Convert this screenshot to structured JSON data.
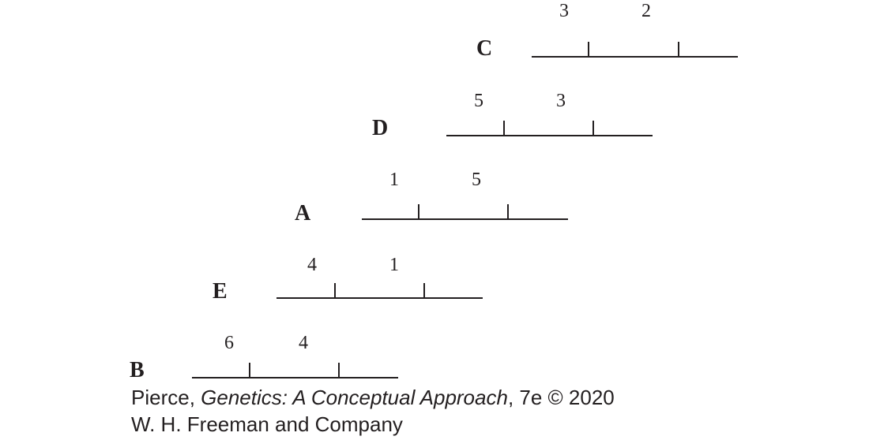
{
  "maps": [
    {
      "strain": "C",
      "gene_left": "3",
      "gene_right": "2"
    },
    {
      "strain": "D",
      "gene_left": "5",
      "gene_right": "3"
    },
    {
      "strain": "A",
      "gene_left": "1",
      "gene_right": "5"
    },
    {
      "strain": "E",
      "gene_left": "4",
      "gene_right": "1"
    },
    {
      "strain": "B",
      "gene_left": "6",
      "gene_right": "4"
    }
  ],
  "caption": {
    "author": "Pierce, ",
    "book_title": "Genetics: A Conceptual Approach",
    "edition": ", 7e © 2020",
    "publisher": "W. H. Freeman and Company"
  }
}
